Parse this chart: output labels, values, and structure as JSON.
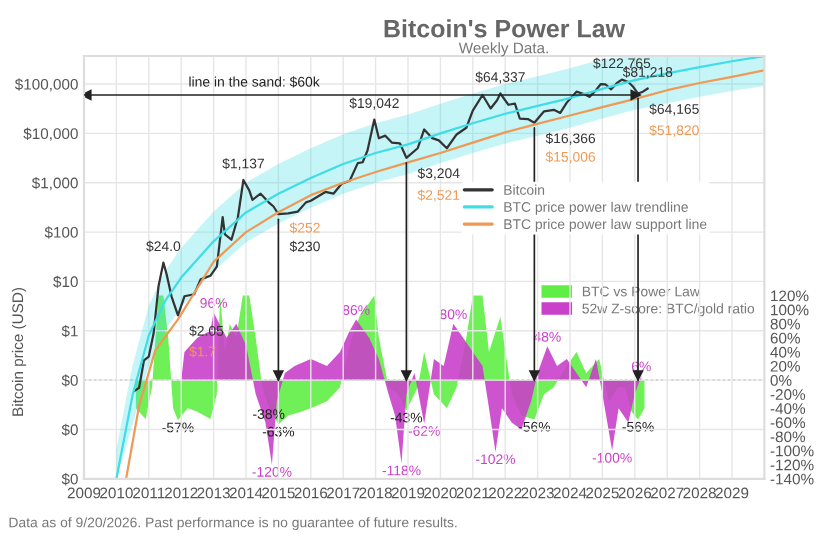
{
  "chart_data": [
    {
      "type": "line",
      "title": "Bitcoin's Power Law",
      "subtitle": "Weekly Data.",
      "ylabel": "Bitcoin price (USD)",
      "log": true,
      "grid": true,
      "legend": "center right",
      "xlim": [
        2009,
        2030
      ],
      "xticks": [
        2009,
        2010,
        2011,
        2012,
        2013,
        2014,
        2015,
        2016,
        2017,
        2018,
        2019,
        2020,
        2021,
        2022,
        2023,
        2024,
        2025,
        2026,
        2027,
        2028,
        2029
      ],
      "ylim": [
        0.001,
        370000
      ],
      "yticks": [
        {
          "value": 0.001,
          "label": "$0"
        },
        {
          "value": 0.01,
          "label": "$0"
        },
        {
          "value": 0.1,
          "label": "$0"
        },
        {
          "value": 1,
          "label": "$1"
        },
        {
          "value": 10,
          "label": "$10"
        },
        {
          "value": 100,
          "label": "$100"
        },
        {
          "value": 1000,
          "label": "$1,000"
        },
        {
          "value": 10000,
          "label": "$10,000"
        },
        {
          "value": 100000,
          "label": "$100,000"
        }
      ],
      "series": [
        {
          "name": "Bitcoin",
          "color": "#333333",
          "x": [
            2010.55,
            2010.7,
            2010.85,
            2011.0,
            2011.15,
            2011.3,
            2011.45,
            2011.55,
            2011.7,
            2011.9,
            2012.1,
            2012.4,
            2012.6,
            2012.9,
            2013.1,
            2013.28,
            2013.35,
            2013.55,
            2013.75,
            2013.92,
            2014.1,
            2014.2,
            2014.45,
            2014.7,
            2014.85,
            2015.0,
            2015.3,
            2015.6,
            2015.85,
            2016.0,
            2016.45,
            2016.7,
            2016.95,
            2017.2,
            2017.45,
            2017.6,
            2017.75,
            2017.96,
            2018.1,
            2018.3,
            2018.5,
            2018.75,
            2018.95,
            2019.3,
            2019.5,
            2019.75,
            2019.95,
            2020.2,
            2020.5,
            2020.8,
            2021.0,
            2021.3,
            2021.55,
            2021.75,
            2021.85,
            2022.1,
            2022.3,
            2022.45,
            2022.7,
            2022.9,
            2023.2,
            2023.5,
            2023.7,
            2023.9,
            2024.2,
            2024.45,
            2024.6,
            2024.8,
            2024.95,
            2025.1,
            2025.27,
            2025.45,
            2025.6,
            2025.8,
            2025.95,
            2026.1,
            2026.25,
            2026.4
          ],
          "values": [
            0.06,
            0.07,
            0.25,
            0.3,
            0.9,
            8,
            24.0,
            14,
            5,
            2.05,
            5,
            5.5,
            11,
            13,
            20,
            200,
            90,
            70,
            200,
            1137,
            700,
            450,
            600,
            400,
            330,
            230,
            240,
            260,
            400,
            430,
            650,
            600,
            950,
            1100,
            2500,
            2600,
            4500,
            19042,
            8000,
            9000,
            6500,
            6300,
            3204,
            5000,
            12000,
            8000,
            7200,
            5000,
            9500,
            13000,
            29000,
            60000,
            32000,
            47000,
            64337,
            38000,
            40000,
            20000,
            19500,
            16366,
            28000,
            30000,
            26000,
            42000,
            70000,
            62000,
            55000,
            75000,
            100000,
            98000,
            78000,
            105000,
            122765,
            110000,
            88000,
            64165,
            70000,
            81218
          ]
        },
        {
          "name": "BTC price power law trendline",
          "color": "#3fdde6",
          "x": [
            2010.0,
            2010.5,
            2011,
            2011.5,
            2012,
            2013,
            2014,
            2015,
            2016,
            2017,
            2018,
            2019,
            2020,
            2021,
            2022,
            2023,
            2024,
            2025,
            2026,
            2027,
            2028,
            2029,
            2030
          ],
          "values": [
            0.001,
            0.05,
            0.8,
            4,
            12,
            65,
            250,
            600,
            1250,
            2400,
            4000,
            6000,
            10000,
            16000,
            25000,
            36000,
            52000,
            80000,
            120000,
            165000,
            220000,
            290000,
            370000
          ],
          "lower": [
            0.001,
            0.0125,
            0.2,
            1,
            3,
            16,
            62,
            150,
            310,
            600,
            1000,
            1500,
            2500,
            4000,
            6250,
            9000,
            13000,
            20000,
            30000,
            41000,
            55000,
            72000,
            92000
          ],
          "upper": [
            0.004,
            0.2,
            3.2,
            16,
            48,
            260,
            1000,
            2400,
            5000,
            9600,
            16000,
            24000,
            40000,
            64000,
            100000,
            144000,
            208000,
            320000,
            370000,
            370000,
            370000,
            370000,
            370000
          ]
        },
        {
          "name": "BTC price power law support line",
          "color": "#ee9955",
          "x": [
            2010.3,
            2010.7,
            2011.2,
            2011.9,
            2013,
            2014,
            2015.0,
            2016,
            2017,
            2018,
            2018.95,
            2020,
            2021,
            2022,
            2022.9,
            2024,
            2025,
            2026.1,
            2027,
            2028,
            2029,
            2030
          ],
          "values": [
            0.001,
            0.03,
            0.4,
            1.7,
            25,
            100,
            252,
            560,
            1000,
            1650,
            2521,
            4000,
            6500,
            10500,
            15006,
            23000,
            34000,
            51820,
            75000,
            105000,
            140000,
            190000
          ]
        }
      ],
      "ref_lines": [
        {
          "axis": "y",
          "value": 60000,
          "label": "line in the sand: $60k",
          "color": "#222222"
        },
        {
          "axis": "x",
          "value": 2015.0,
          "color": "#222222"
        },
        {
          "axis": "x",
          "value": 2018.95,
          "color": "#222222"
        },
        {
          "axis": "x",
          "value": 2022.9,
          "color": "#222222"
        },
        {
          "axis": "x",
          "value": 2026.1,
          "color": "#222222"
        }
      ],
      "annotations": [
        {
          "text": "$24.0",
          "x": 2011.45,
          "y": 24.0
        },
        {
          "text": "$2.05",
          "x": 2011.9,
          "y": 2.05
        },
        {
          "text": "$1.7",
          "x": 2011.9,
          "y": 1.7
        },
        {
          "text": "$1,137",
          "x": 2013.92,
          "y": 1137
        },
        {
          "text": "$252",
          "x": 2015.0,
          "y": 252
        },
        {
          "text": "$230",
          "x": 2015.0,
          "y": 230
        },
        {
          "text": "$19,042",
          "x": 2017.96,
          "y": 19042
        },
        {
          "text": "$3,204",
          "x": 2018.95,
          "y": 3204
        },
        {
          "text": "$2,521",
          "x": 2018.95,
          "y": 2521
        },
        {
          "text": "$64,337",
          "x": 2021.85,
          "y": 64337
        },
        {
          "text": "$16,366",
          "x": 2022.9,
          "y": 16366
        },
        {
          "text": "$15,006",
          "x": 2022.9,
          "y": 15006
        },
        {
          "text": "$122,765",
          "x": 2025.6,
          "y": 122765
        },
        {
          "text": "$81,218",
          "x": 2026.4,
          "y": 81218
        },
        {
          "text": "$64,165",
          "x": 2026.1,
          "y": 64165
        },
        {
          "text": "$51,820",
          "x": 2026.1,
          "y": 51820
        },
        "Data as of 9/20/2026. Past performance is no guarantee of future results."
      ]
    },
    {
      "type": "area",
      "legend": "right",
      "tick_labels": "y",
      "xlim": [
        2009,
        2030
      ],
      "xticks": [
        2009,
        2010,
        2011,
        2012,
        2013,
        2014,
        2015,
        2016,
        2017,
        2018,
        2019,
        2020,
        2021,
        2022,
        2023,
        2024,
        2025,
        2026,
        2027,
        2028,
        2029
      ],
      "ylim": [
        -140,
        460
      ],
      "yticks": [
        {
          "value": -140,
          "label": "-140%"
        },
        {
          "value": -120,
          "label": "-120%"
        },
        {
          "value": -100,
          "label": "-100%"
        },
        {
          "value": -80,
          "label": "-80%"
        },
        {
          "value": -60,
          "label": "-60%"
        },
        {
          "value": -40,
          "label": "-40%"
        },
        {
          "value": -20,
          "label": "-20%"
        },
        {
          "value": 0,
          "label": "0%"
        },
        {
          "value": 20,
          "label": "20%"
        },
        {
          "value": 40,
          "label": "40%"
        },
        {
          "value": 60,
          "label": "60%"
        },
        {
          "value": 80,
          "label": "80%"
        },
        {
          "value": 100,
          "label": "100%"
        },
        {
          "value": 120,
          "label": "120%"
        }
      ],
      "series": [
        {
          "name": "BTC vs Power Law",
          "color": "#5fee45",
          "x": [
            2010.6,
            2010.9,
            2011.1,
            2011.3,
            2011.45,
            2011.6,
            2011.75,
            2011.9,
            2012.2,
            2012.5,
            2012.9,
            2013.1,
            2013.2,
            2013.35,
            2013.5,
            2013.7,
            2013.9,
            2014.1,
            2014.3,
            2014.5,
            2014.7,
            2015.0,
            2015.3,
            2015.7,
            2016.0,
            2016.5,
            2016.9,
            2017.2,
            2017.5,
            2017.96,
            2018.1,
            2018.4,
            2018.7,
            2018.95,
            2019.3,
            2019.5,
            2019.8,
            2020.2,
            2020.5,
            2020.8,
            2021.0,
            2021.3,
            2021.5,
            2021.85,
            2022.2,
            2022.5,
            2022.9,
            2023.2,
            2023.5,
            2023.9,
            2024.2,
            2024.5,
            2024.9,
            2025.2,
            2025.5,
            2025.7,
            2025.9,
            2026.1,
            2026.3
          ],
          "values": [
            -40,
            -55,
            -10,
            120,
            120,
            60,
            -40,
            -57,
            -40,
            -45,
            -55,
            -20,
            120,
            40,
            80,
            60,
            120,
            120,
            60,
            -10,
            -38,
            -63,
            -50,
            -45,
            -40,
            -30,
            -10,
            50,
            90,
            120,
            60,
            -10,
            -20,
            -43,
            -10,
            40,
            -20,
            -40,
            -10,
            60,
            120,
            120,
            40,
            90,
            -20,
            -50,
            -56,
            -20,
            -10,
            20,
            40,
            10,
            30,
            -30,
            -10,
            -10,
            -45,
            -56,
            -40
          ]
        },
        {
          "name": "52w Z-score: BTC/gold ratio",
          "color": "#c940c9",
          "x": [
            2012.0,
            2012.1,
            2012.5,
            2012.9,
            2013.0,
            2013.4,
            2013.7,
            2014.0,
            2014.3,
            2014.6,
            2014.8,
            2014.95,
            2015.2,
            2015.5,
            2016.0,
            2016.5,
            2016.9,
            2017.2,
            2017.4,
            2017.8,
            2018.1,
            2018.4,
            2018.6,
            2018.8,
            2018.95,
            2019.2,
            2019.5,
            2019.8,
            2020.1,
            2020.4,
            2020.7,
            2021.0,
            2021.3,
            2021.5,
            2021.7,
            2021.9,
            2022.2,
            2022.5,
            2022.8,
            2023.0,
            2023.3,
            2023.6,
            2023.9,
            2024.2,
            2024.5,
            2024.8,
            2025.0,
            2025.3,
            2025.5,
            2025.8,
            2026.0,
            2026.2
          ],
          "values": [
            0,
            40,
            60,
            70,
            96,
            60,
            80,
            50,
            -20,
            -60,
            -120,
            -30,
            10,
            20,
            30,
            20,
            40,
            70,
            86,
            60,
            30,
            -20,
            -50,
            -118,
            -20,
            10,
            -62,
            30,
            20,
            80,
            60,
            40,
            20,
            -40,
            -102,
            -40,
            -60,
            -70,
            -30,
            10,
            48,
            20,
            30,
            10,
            -10,
            30,
            -20,
            -100,
            -40,
            -60,
            -20,
            6
          ]
        }
      ],
      "ref_lines": [
        {
          "axis": "y",
          "value": 0,
          "color": "#aaaaaa",
          "line_style": "dotted"
        }
      ],
      "annotations": [
        {
          "text": "-57%",
          "x": 2011.9,
          "y": -57
        },
        {
          "text": "96%",
          "x": 2013.0,
          "y": 96
        },
        {
          "text": "-38%",
          "x": 2014.7,
          "y": -38
        },
        {
          "text": "-120%",
          "x": 2014.8,
          "y": -120
        },
        {
          "text": "-63%",
          "x": 2015.0,
          "y": -63
        },
        {
          "text": "86%",
          "x": 2017.4,
          "y": 86
        },
        {
          "text": "-43%",
          "x": 2018.95,
          "y": -43
        },
        {
          "text": "-118%",
          "x": 2018.8,
          "y": -118
        },
        {
          "text": "-62%",
          "x": 2019.5,
          "y": -62
        },
        {
          "text": "80%",
          "x": 2020.4,
          "y": 80
        },
        {
          "text": "-102%",
          "x": 2021.7,
          "y": -102
        },
        {
          "text": "-56%",
          "x": 2022.9,
          "y": -56
        },
        {
          "text": "48%",
          "x": 2023.3,
          "y": 48
        },
        {
          "text": "-100%",
          "x": 2025.3,
          "y": -100
        },
        {
          "text": "-56%",
          "x": 2026.1,
          "y": -56
        },
        {
          "text": "6%",
          "x": 2026.2,
          "y": 6
        }
      ]
    }
  ]
}
